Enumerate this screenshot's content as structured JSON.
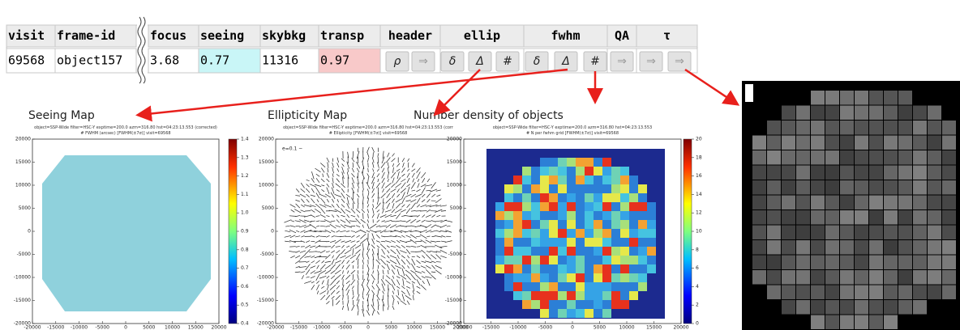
{
  "table": {
    "headers": [
      "visit",
      "frame-id",
      "focus",
      "seeing",
      "skybkg",
      "transp",
      "header",
      "ellip",
      "fwhm",
      "QA",
      "τ"
    ],
    "row": [
      "69568",
      "object157",
      "3.68",
      "0.77",
      "11316",
      "0.97"
    ],
    "buttons": [
      "ρ",
      "⇒",
      "δ",
      "Δ",
      "#",
      "δ",
      "Δ",
      "#",
      "⇒",
      "⇒",
      "⇒"
    ]
  },
  "panels": [
    {
      "title": "Seeing Map",
      "subtitle": [
        "object=SSP-Wide filter=HSC-Y exptime=200.0 azm=316.80 hst=04:23:13.553 (corrected)",
        "# FWHM (arcsec) [FWHM(±7σ)] visit=69568"
      ],
      "xlim": [
        -20000,
        20000
      ],
      "ylim": [
        -20000,
        20000
      ],
      "xticks": [
        -20000,
        -15000,
        -10000,
        -5000,
        0,
        5000,
        10000,
        15000,
        20000
      ],
      "yticks": [
        -20000,
        -15000,
        -10000,
        -5000,
        0,
        5000,
        10000,
        15000,
        20000
      ],
      "clim": [
        0.4,
        1.4
      ],
      "cticks": [
        0.4,
        0.5,
        0.6,
        0.7,
        0.8,
        0.9,
        {
          "value": 1.0,
          "label": "1.0"
        },
        1.1,
        1.2,
        1.3,
        1.4
      ]
    },
    {
      "title": "Ellipticity Map",
      "subtitle": [
        "object=SSP-Wide filter=HSC-Y exptime=200.0 azm=316.80 hst=04:23:13.553 (corr",
        "# Ellipticity [FWHM(±7σ)] visit=69568"
      ],
      "annotation": "e=0.1 −",
      "xlim": [
        -20000,
        20000
      ],
      "ylim": [
        -20000,
        20000
      ],
      "xticks": [
        -20000,
        -15000,
        -10000,
        -5000,
        0,
        5000,
        10000,
        15000,
        20000
      ],
      "yticks": [
        -20000,
        -15000,
        -10000,
        -5000,
        0,
        5000,
        10000,
        15000,
        20000
      ]
    },
    {
      "title": "Number density of objects",
      "subtitle": [
        "object=SSP-Wide filter=HSC-Y exptime=200.0 azm=316.80 hst=04:23:13.553",
        "# N per fwhm grid [FWHM(±7σ)] visit=69568"
      ],
      "xlim": [
        -20000,
        20000
      ],
      "ylim": [
        -20000,
        20000
      ],
      "xticks": [
        -20000,
        -15000,
        -10000,
        -5000,
        0,
        5000,
        10000,
        15000,
        20000
      ],
      "yticks": [
        -20000,
        -15000,
        -10000,
        -5000,
        0,
        5000,
        10000,
        15000,
        20000
      ],
      "clim": [
        0,
        20
      ],
      "cticks": [
        0,
        2,
        4,
        6,
        8,
        10,
        12,
        14,
        16,
        18,
        20
      ]
    }
  ]
}
